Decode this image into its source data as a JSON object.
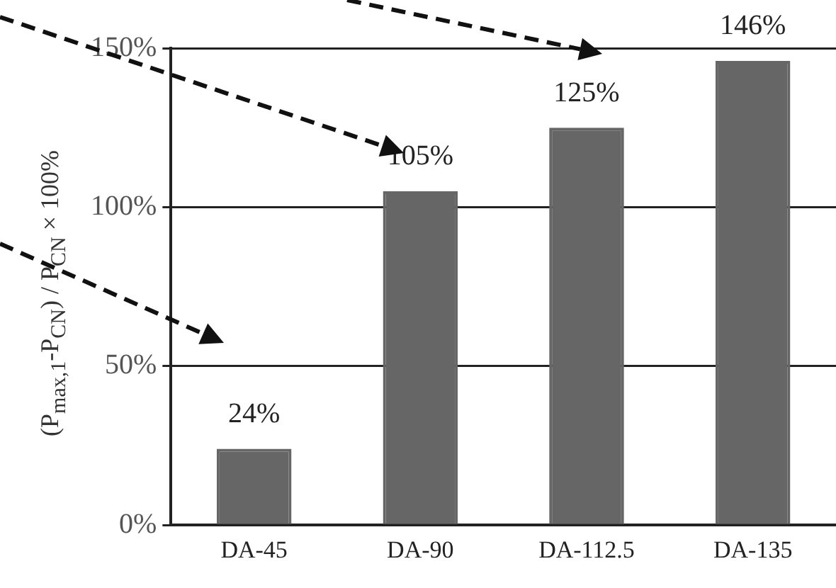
{
  "chart_data": {
    "type": "bar",
    "ylabel": "(P$_{max,1}$-P$_{CN}$) / P$_{CN}$ × 100%",
    "categories": [
      "DA-45",
      "DA-90",
      "DA-112.5",
      "DA-135"
    ],
    "values": [
      24,
      105,
      125,
      146
    ],
    "value_labels": [
      "24%",
      "105%",
      "125%",
      "146%"
    ],
    "color": "#666666",
    "ylim": [
      0,
      150
    ],
    "yticks": [
      {
        "value": 0,
        "label": "0%"
      },
      {
        "value": 50,
        "label": "50%"
      },
      {
        "value": 100,
        "label": "100%"
      },
      {
        "value": 150,
        "label": "150%"
      }
    ],
    "grid": "y"
  }
}
